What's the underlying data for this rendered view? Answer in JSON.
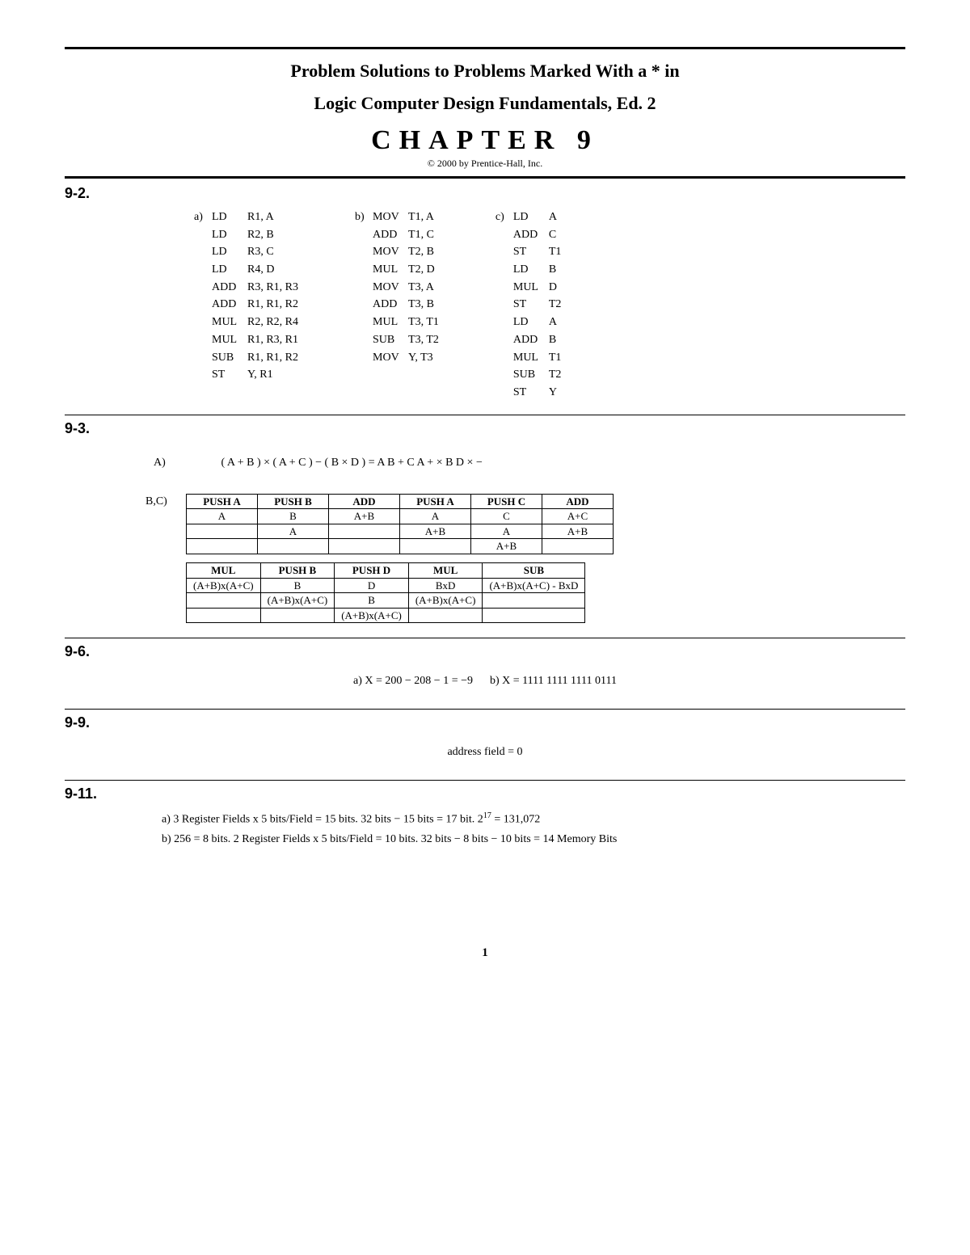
{
  "header": {
    "line1": "Problem Solutions to Problems Marked With a * in",
    "line2": "Logic Computer Design Fundamentals, Ed. 2",
    "chapter": "CHAPTER 9",
    "copyright": "© 2000 by Prentice-Hall, Inc."
  },
  "colors": {
    "text": "#000000",
    "bg": "#ffffff",
    "rule": "#000000"
  },
  "p9_2": {
    "label": "9-2.",
    "col_a_label": "a)",
    "col_b_label": "b)",
    "col_c_label": "c)",
    "col_a": [
      [
        "LD",
        "R1, A"
      ],
      [
        "LD",
        "R2, B"
      ],
      [
        "LD",
        "R3, C"
      ],
      [
        "LD",
        "R4, D"
      ],
      [
        "ADD",
        "R3, R1, R3"
      ],
      [
        "ADD",
        "R1, R1, R2"
      ],
      [
        "MUL",
        "R2, R2, R4"
      ],
      [
        "MUL",
        "R1, R3, R1"
      ],
      [
        "SUB",
        "R1, R1, R2"
      ],
      [
        "ST",
        "Y, R1"
      ]
    ],
    "col_b": [
      [
        "MOV",
        "T1, A"
      ],
      [
        "ADD",
        "T1, C"
      ],
      [
        "MOV",
        "T2, B"
      ],
      [
        "MUL",
        "T2, D"
      ],
      [
        "MOV",
        "T3, A"
      ],
      [
        "ADD",
        "T3, B"
      ],
      [
        "MUL",
        "T3, T1"
      ],
      [
        "SUB",
        "T3, T2"
      ],
      [
        "MOV",
        "Y, T3"
      ]
    ],
    "col_c": [
      [
        "LD",
        "A"
      ],
      [
        "ADD",
        "C"
      ],
      [
        "ST",
        "T1"
      ],
      [
        "LD",
        "B"
      ],
      [
        "MUL",
        "D"
      ],
      [
        "ST",
        "T2"
      ],
      [
        "LD",
        "A"
      ],
      [
        "ADD",
        "B"
      ],
      [
        "MUL",
        "T1"
      ],
      [
        "SUB",
        "T2"
      ],
      [
        "ST",
        "Y"
      ]
    ]
  },
  "p9_3": {
    "label": "9-3.",
    "partA_label": "A)",
    "equation": "( A + B ) × ( A + C ) − ( B × D ) = A B + C A + × B D × −",
    "partBC_label": "B,C)",
    "table1": {
      "headers": [
        "PUSH A",
        "PUSH B",
        "ADD",
        "PUSH A",
        "PUSH C",
        "ADD"
      ],
      "rows": [
        [
          "A",
          "B",
          "A+B",
          "A",
          "C",
          "A+C"
        ],
        [
          "",
          "A",
          "",
          "A+B",
          "A",
          "A+B"
        ],
        [
          "",
          "",
          "",
          "",
          "A+B",
          ""
        ]
      ]
    },
    "table2": {
      "headers": [
        "MUL",
        "PUSH B",
        "PUSH D",
        "MUL",
        "SUB"
      ],
      "rows": [
        [
          "(A+B)x(A+C)",
          "B",
          "D",
          "BxD",
          "(A+B)x(A+C) - BxD"
        ],
        [
          "",
          "(A+B)x(A+C)",
          "B",
          "(A+B)x(A+C)",
          ""
        ],
        [
          "",
          "",
          "(A+B)x(A+C)",
          "",
          ""
        ]
      ]
    }
  },
  "p9_6": {
    "label": "9-6.",
    "text_a": "a)   X = 200 − 208 − 1 = −9",
    "text_b": "b)  X = 1111 1111 1111 0111"
  },
  "p9_9": {
    "label": "9-9.",
    "text": "address field = 0"
  },
  "p9_11": {
    "label": "9-11.",
    "line_a_pre": "a)   3 Register Fields x 5 bits/Field = 15 bits.     32 bits − 15 bits = 17 bit.  2",
    "line_a_exp": "17",
    "line_a_post": " = 131,072",
    "line_b": "b)   256 = 8 bits.   2 Register Fields x 5 bits/Field = 10 bits. 32 bits − 8 bits − 10 bits = 14 Memory Bits"
  },
  "page_number": "1"
}
